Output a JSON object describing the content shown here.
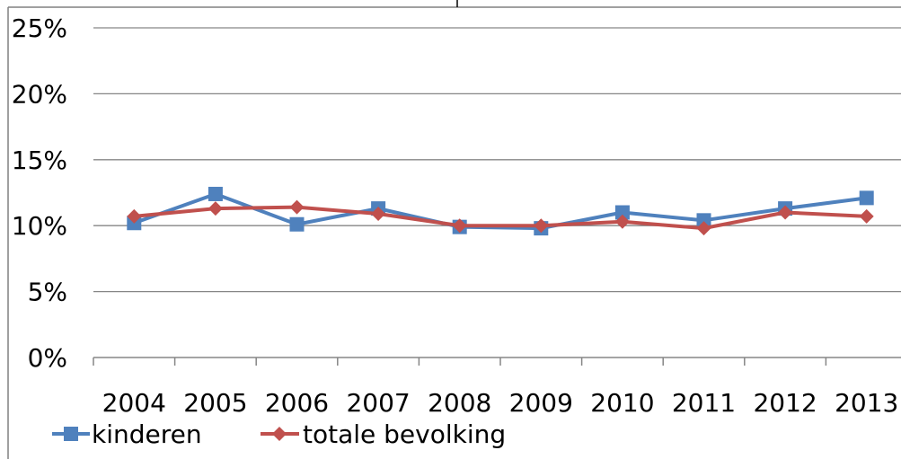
{
  "chart_data": {
    "type": "line",
    "categories": [
      "2004",
      "2005",
      "2006",
      "2007",
      "2008",
      "2009",
      "2010",
      "2011",
      "2012",
      "2013"
    ],
    "series": [
      {
        "name": "kinderen",
        "color": "#4F81BD",
        "marker": "square",
        "values": [
          10.2,
          12.4,
          10.1,
          11.3,
          9.9,
          9.8,
          11.0,
          10.4,
          11.3,
          12.1
        ]
      },
      {
        "name": "totale bevolking",
        "color": "#C0504D",
        "marker": "diamond",
        "values": [
          10.7,
          11.3,
          11.4,
          10.9,
          10.0,
          10.0,
          10.3,
          9.8,
          11.0,
          10.7
        ]
      }
    ],
    "ylim": [
      0,
      25
    ],
    "yticks": [
      "0%",
      "5%",
      "10%",
      "15%",
      "20%",
      "25%"
    ],
    "ytick_values": [
      0,
      5,
      10,
      15,
      20,
      25
    ],
    "grid": true,
    "legend_position": "bottom-left",
    "title": "",
    "xlabel": "",
    "ylabel": ""
  }
}
